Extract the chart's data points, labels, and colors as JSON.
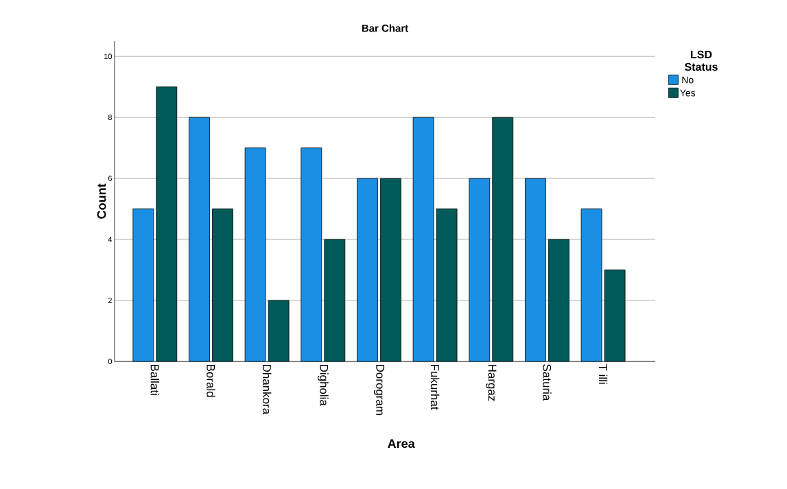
{
  "chart_data": {
    "type": "bar",
    "title": "Bar Chart",
    "xlabel": "Area",
    "ylabel": "Count",
    "legend_title": "LSD Status",
    "categories": [
      "Ballati",
      "Borald",
      "Dhankora",
      "Digholia",
      "Dorogram",
      "Fukurhat",
      "Hargaz",
      "Saturia",
      "T illi"
    ],
    "series": [
      {
        "name": "No",
        "color": "#1a8fe3",
        "values": [
          5,
          8,
          7,
          7,
          6,
          8,
          6,
          6,
          5
        ]
      },
      {
        "name": "Yes",
        "color": "#005a5a",
        "values": [
          9,
          5,
          2,
          4,
          6,
          5,
          8,
          4,
          3
        ]
      }
    ],
    "ylim": [
      0,
      10.5
    ],
    "yticks": [
      0,
      2,
      4,
      6,
      8,
      10
    ],
    "grid": "y",
    "legend": "top right"
  }
}
